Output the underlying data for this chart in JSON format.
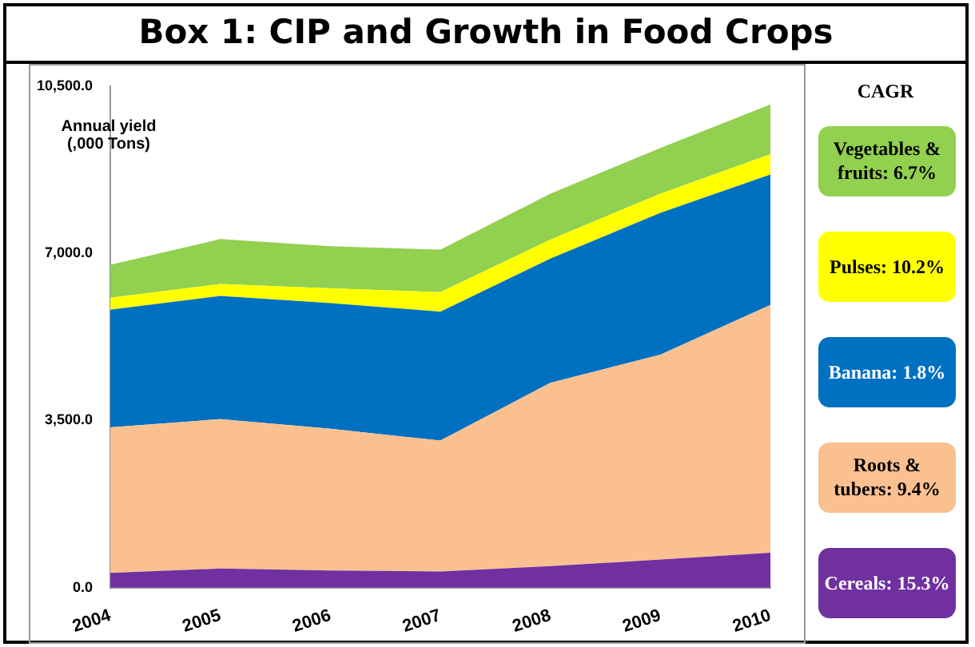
{
  "chart_data": {
    "type": "area",
    "title": "Box 1: CIP and Growth in Food Crops",
    "ylabel": "Annual yield (,000 Tons)",
    "legend_title": "CAGR",
    "legend": "right",
    "stacked": true,
    "grid": false,
    "categories": [
      "2004",
      "2005",
      "2006",
      "2007",
      "2008",
      "2009",
      "2010"
    ],
    "ylim": [
      0,
      10500
    ],
    "yticks": [
      {
        "value": 0,
        "label": "0.0"
      },
      {
        "value": 3500,
        "label": "3,500.0"
      },
      {
        "value": 7000,
        "label": "7,000.0"
      },
      {
        "value": 10500,
        "label": "10,500.0"
      }
    ],
    "series": [
      {
        "name": "Cereals: 15.3%",
        "color": "#7030a0",
        "values": [
          310,
          400,
          360,
          340,
          450,
          590,
          730
        ]
      },
      {
        "name": "Roots & tubers: 9.4%",
        "color": "#fac090",
        "values": [
          3050,
          3130,
          2970,
          2740,
          3840,
          4290,
          5190
        ]
      },
      {
        "name": "Banana: 1.8%",
        "color": "#0070c0",
        "values": [
          2460,
          2580,
          2630,
          2700,
          2600,
          2970,
          2730
        ]
      },
      {
        "name": "Pulses: 10.2%",
        "color": "#ffff00",
        "values": [
          250,
          250,
          310,
          410,
          400,
          400,
          430
        ]
      },
      {
        "name": "Vegetables & fruits: 6.7%",
        "color": "#92d050",
        "values": [
          690,
          940,
          880,
          890,
          960,
          960,
          1040
        ]
      }
    ]
  }
}
